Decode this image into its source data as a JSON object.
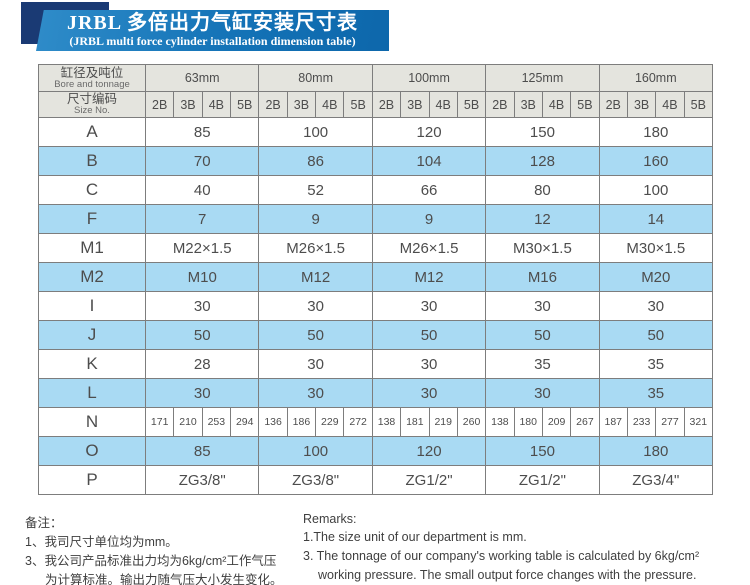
{
  "banner": {
    "title_cn": "JRBL 多倍出力气缸安装尺寸表",
    "title_en": "(JRBL multi force cylinder installation dimension table)"
  },
  "table": {
    "corner_cn": "缸径及吨位",
    "corner_en": "Bore and tonnage",
    "size_label_cn": "尺寸编码",
    "size_label_en": "Size No.",
    "bore_headers": [
      "63mm",
      "80mm",
      "100mm",
      "125mm",
      "160mm"
    ],
    "size_codes": [
      "2B",
      "3B",
      "4B",
      "5B"
    ],
    "rows": [
      {
        "label": "A",
        "type": "merged",
        "values": [
          "85",
          "100",
          "120",
          "150",
          "180"
        ]
      },
      {
        "label": "B",
        "type": "merged",
        "values": [
          "70",
          "86",
          "104",
          "128",
          "160"
        ]
      },
      {
        "label": "C",
        "type": "merged",
        "values": [
          "40",
          "52",
          "66",
          "80",
          "100"
        ]
      },
      {
        "label": "F",
        "type": "merged",
        "values": [
          "7",
          "9",
          "9",
          "12",
          "14"
        ]
      },
      {
        "label": "M1",
        "type": "merged",
        "values": [
          "M22×1.5",
          "M26×1.5",
          "M26×1.5",
          "M30×1.5",
          "M30×1.5"
        ]
      },
      {
        "label": "M2",
        "type": "merged",
        "values": [
          "M10",
          "M12",
          "M12",
          "M16",
          "M20"
        ]
      },
      {
        "label": "I",
        "type": "merged",
        "values": [
          "30",
          "30",
          "30",
          "30",
          "30"
        ]
      },
      {
        "label": "J",
        "type": "merged",
        "values": [
          "50",
          "50",
          "50",
          "50",
          "50"
        ]
      },
      {
        "label": "K",
        "type": "merged",
        "values": [
          "28",
          "30",
          "30",
          "35",
          "35"
        ]
      },
      {
        "label": "L",
        "type": "merged",
        "values": [
          "30",
          "30",
          "30",
          "30",
          "35"
        ]
      },
      {
        "label": "N",
        "type": "per_code",
        "values": [
          [
            "171",
            "210",
            "253",
            "294"
          ],
          [
            "136",
            "186",
            "229",
            "272"
          ],
          [
            "138",
            "181",
            "219",
            "260"
          ],
          [
            "138",
            "180",
            "209",
            "267"
          ],
          [
            "187",
            "233",
            "277",
            "321"
          ]
        ]
      },
      {
        "label": "O",
        "type": "merged",
        "values": [
          "85",
          "100",
          "120",
          "150",
          "180"
        ]
      },
      {
        "label": "P",
        "type": "merged",
        "values": [
          "ZG3/8\"",
          "ZG3/8\"",
          "ZG1/2\"",
          "ZG1/2\"",
          "ZG3/4\""
        ]
      }
    ]
  },
  "remarks_cn": {
    "title": "备注：",
    "lines": [
      {
        "text": "1、我司尺寸单位均为mm。",
        "indent": false
      },
      {
        "text": "3、我公司产品标准出力均为6kg/cm²工作气压",
        "indent": false
      },
      {
        "text": "为计算标准。输出力随气压大小发生变化。",
        "indent": true
      }
    ]
  },
  "remarks_en": {
    "title": "Remarks:",
    "lines": [
      {
        "text": "1.The size unit of our department is mm.",
        "indent": false
      },
      {
        "text": "3. The tonnage of our company's working table is calculated by 6kg/cm²",
        "indent": false
      },
      {
        "text": "working pressure. The small output force changes with the pressure.",
        "indent": true
      }
    ]
  },
  "colors": {
    "banner_blue": "#1473b7",
    "banner_dark_square": "#1a3a74",
    "header_gray": "#e4e4de",
    "row_highlight_blue": "#a9daf3",
    "table_border": "#7d7d7d",
    "text": "#4d4d4d"
  }
}
